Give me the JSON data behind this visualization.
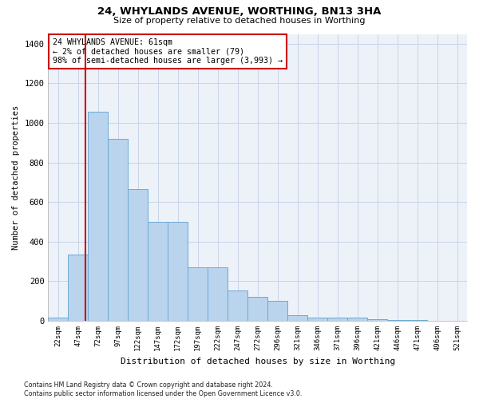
{
  "title": "24, WHYLANDS AVENUE, WORTHING, BN13 3HA",
  "subtitle": "Size of property relative to detached houses in Worthing",
  "xlabel": "Distribution of detached houses by size in Worthing",
  "ylabel": "Number of detached properties",
  "categories": [
    "22sqm",
    "47sqm",
    "72sqm",
    "97sqm",
    "122sqm",
    "147sqm",
    "172sqm",
    "197sqm",
    "222sqm",
    "247sqm",
    "272sqm",
    "296sqm",
    "321sqm",
    "346sqm",
    "371sqm",
    "396sqm",
    "421sqm",
    "446sqm",
    "471sqm",
    "496sqm",
    "521sqm"
  ],
  "values": [
    15,
    335,
    1055,
    920,
    665,
    500,
    500,
    270,
    270,
    155,
    120,
    100,
    30,
    18,
    18,
    15,
    10,
    6,
    6,
    0,
    0
  ],
  "bar_color": "#bad4ed",
  "bar_edge_color": "#6aaad4",
  "grid_color": "#c8d4e8",
  "bg_color": "#edf2f9",
  "vline_color": "#cc0000",
  "annotation_text": "24 WHYLANDS AVENUE: 61sqm\n← 2% of detached houses are smaller (79)\n98% of semi-detached houses are larger (3,993) →",
  "annotation_box_color": "#ffffff",
  "annotation_box_edge": "#cc0000",
  "footer": "Contains HM Land Registry data © Crown copyright and database right 2024.\nContains public sector information licensed under the Open Government Licence v3.0.",
  "ylim": [
    0,
    1450
  ],
  "yticks": [
    0,
    200,
    400,
    600,
    800,
    1000,
    1200,
    1400
  ]
}
